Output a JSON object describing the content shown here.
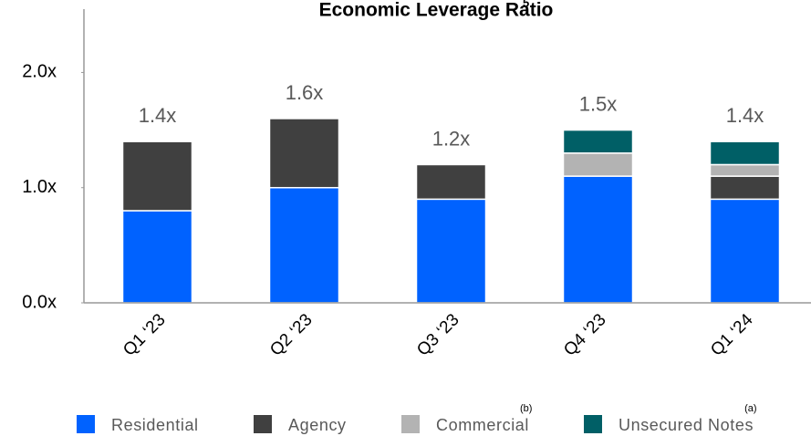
{
  "chart_data": {
    "type": "stacked_bar",
    "title": "Economic Leverage Ratio",
    "title_note": "5",
    "categories": [
      "Q1 ‘23",
      "Q2 ‘23",
      "Q3 ‘23",
      "Q4 ‘23",
      "Q1 ‘24"
    ],
    "series": [
      {
        "name": "Residential",
        "color": "#0062ff",
        "values": [
          0.8,
          1.0,
          0.9,
          1.1,
          0.9
        ]
      },
      {
        "name": "Agency",
        "color": "#404040",
        "values": [
          0.6,
          0.6,
          0.3,
          0,
          0.2
        ]
      },
      {
        "name": "Commercial",
        "note": "(b)",
        "color": "#b3b3b3",
        "values": [
          0,
          0,
          0,
          0.2,
          0.1
        ]
      },
      {
        "name": "Unsecured Notes",
        "note": "(a)",
        "color": "#005f66",
        "values": [
          0,
          0,
          0,
          0.2,
          0.2
        ]
      }
    ],
    "totals": [
      1.4,
      1.6,
      1.2,
      1.5,
      1.4
    ],
    "total_labels": [
      "1.4x",
      "1.6x",
      "1.2x",
      "1.5x",
      "1.4x"
    ],
    "ylim": [
      0,
      2.55
    ],
    "yticks": [
      {
        "value": 0,
        "label": "0.0x"
      },
      {
        "value": 1,
        "label": "1.0x"
      },
      {
        "value": 2,
        "label": "2.0x"
      }
    ]
  }
}
